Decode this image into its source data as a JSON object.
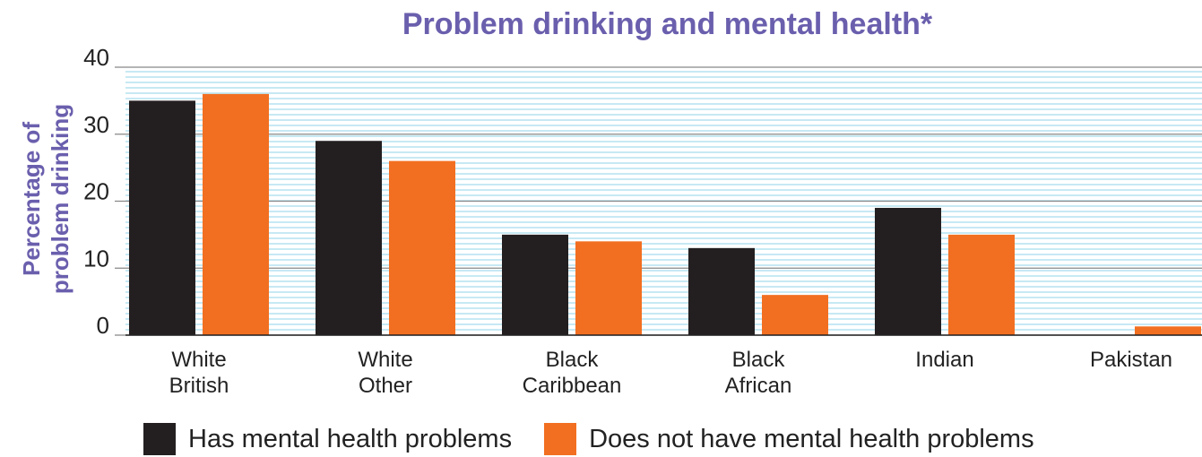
{
  "colors": {
    "title": "#6a5fad",
    "series_1": "#231f20",
    "series_2": "#f26f21",
    "grid": "#8fd3ea",
    "axis": "#222222"
  },
  "chart_data": {
    "type": "bar",
    "title": "Problem drinking and mental health*",
    "xlabel": "",
    "ylabel": "Percentage of problem drinking",
    "ylabel_lines": [
      "Percentage of",
      "problem drinking"
    ],
    "ylim": [
      0,
      40
    ],
    "yticks": [
      "0",
      "10",
      "20",
      "30",
      "40"
    ],
    "grid": true,
    "legend_position": "bottom",
    "categories": [
      [
        "White",
        "British"
      ],
      [
        "White",
        "Other"
      ],
      [
        "Black",
        "Caribbean"
      ],
      [
        "Black",
        "African"
      ],
      [
        "Indian"
      ],
      [
        "Pakistan"
      ]
    ],
    "series": [
      {
        "name": "Has mental health problems",
        "values": [
          35,
          29,
          15,
          13,
          19,
          0
        ]
      },
      {
        "name": "Does not have mental health problems",
        "values": [
          36,
          26,
          14,
          6,
          15,
          1.3
        ]
      }
    ]
  }
}
